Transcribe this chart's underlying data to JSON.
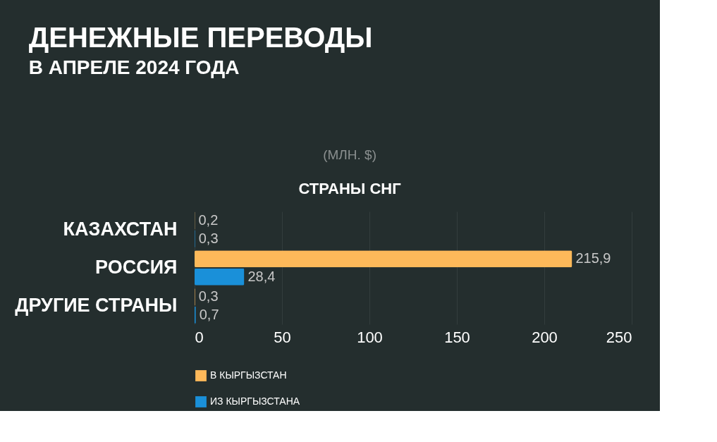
{
  "chart_data": {
    "type": "bar",
    "orientation": "horizontal",
    "title": "ДЕНЕЖНЫЕ ПЕРЕВОДЫ",
    "subtitle": "В АПРЕЛЕ 2024 ГОДА",
    "annotations": [
      "(МЛН. $)",
      "СТРАНЫ СНГ"
    ],
    "categories": [
      "КАЗАХСТАН",
      "РОССИЯ",
      "ДРУГИЕ СТРАНЫ"
    ],
    "series": [
      {
        "name": "В КЫРГЫЗСТАН",
        "color": "#fdb95a",
        "values": [
          0.2,
          215.9,
          0.3
        ],
        "value_labels": [
          "0,2",
          "215,9",
          "0,3"
        ]
      },
      {
        "name": "ИЗ КЫРГЫЗСТАНА",
        "color": "#1a90d9",
        "values": [
          0.3,
          28.4,
          0.7
        ],
        "value_labels": [
          "0,3",
          "28,4",
          "0,7"
        ]
      }
    ],
    "xlim": [
      0,
      250
    ],
    "xticks": [
      0,
      50,
      100,
      150,
      200,
      250
    ],
    "grid": "x",
    "legend": "bottom"
  }
}
